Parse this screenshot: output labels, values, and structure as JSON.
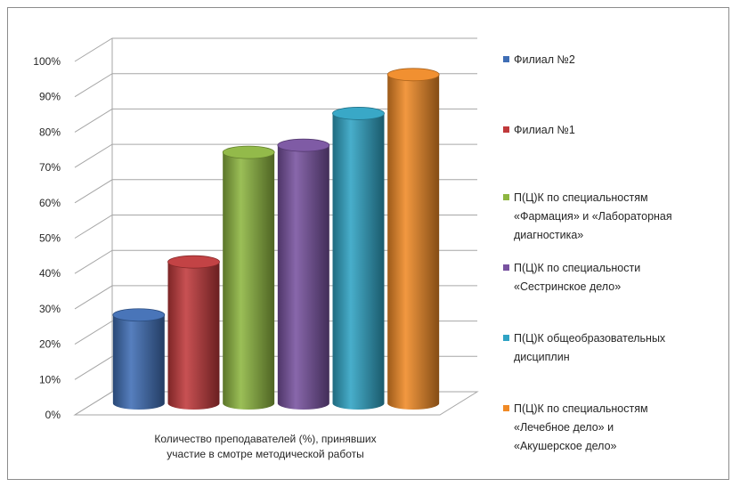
{
  "chart_data": {
    "type": "bar",
    "categories": [
      "Количество преподавателей (%), принявших участие в смотре методической работы"
    ],
    "category_lines": [
      "Количество преподавателей (%), принявших",
      "участие в смотре методической работы"
    ],
    "series": [
      {
        "name": "Филиал №2",
        "name_lines": [
          "Филиал №2"
        ],
        "values": [
          25
        ],
        "color": "#3f6eb5"
      },
      {
        "name": "Филиал №1",
        "name_lines": [
          "Филиал №1"
        ],
        "values": [
          40
        ],
        "color": "#c0393b"
      },
      {
        "name": "П(Ц)К по специальностям «Фармация» и «Лабораторная диагностика»",
        "name_lines": [
          "П(Ц)К по специальностям",
          "«Фармация» и «Лабораторная",
          "диагностика»"
        ],
        "values": [
          71
        ],
        "color": "#8db640"
      },
      {
        "name": "П(Ц)К по специальности «Сестринское дело»",
        "name_lines": [
          "П(Ц)К по специальности",
          "«Сестринское дело»"
        ],
        "values": [
          73
        ],
        "color": "#7852a0"
      },
      {
        "name": "П(Ц)К общеобразовательных дисциплин",
        "name_lines": [
          "П(Ц)К общеобразовательных",
          "дисциплин"
        ],
        "values": [
          82
        ],
        "color": "#2fa3c4"
      },
      {
        "name": "П(Ц)К по специальностям «Лечебное дело» и «Акушерское дело»",
        "name_lines": [
          "П(Ц)К по специальностям",
          "«Лечебное дело» и",
          "«Акушерское дело»"
        ],
        "values": [
          93
        ],
        "color": "#f08a26"
      }
    ],
    "y_ticks": [
      "0%",
      "10%",
      "20%",
      "30%",
      "40%",
      "50%",
      "60%",
      "70%",
      "80%",
      "90%",
      "100%"
    ],
    "ylim": [
      0,
      100
    ],
    "grid": true,
    "legend_position": "right",
    "style": "3d-cylinder"
  }
}
